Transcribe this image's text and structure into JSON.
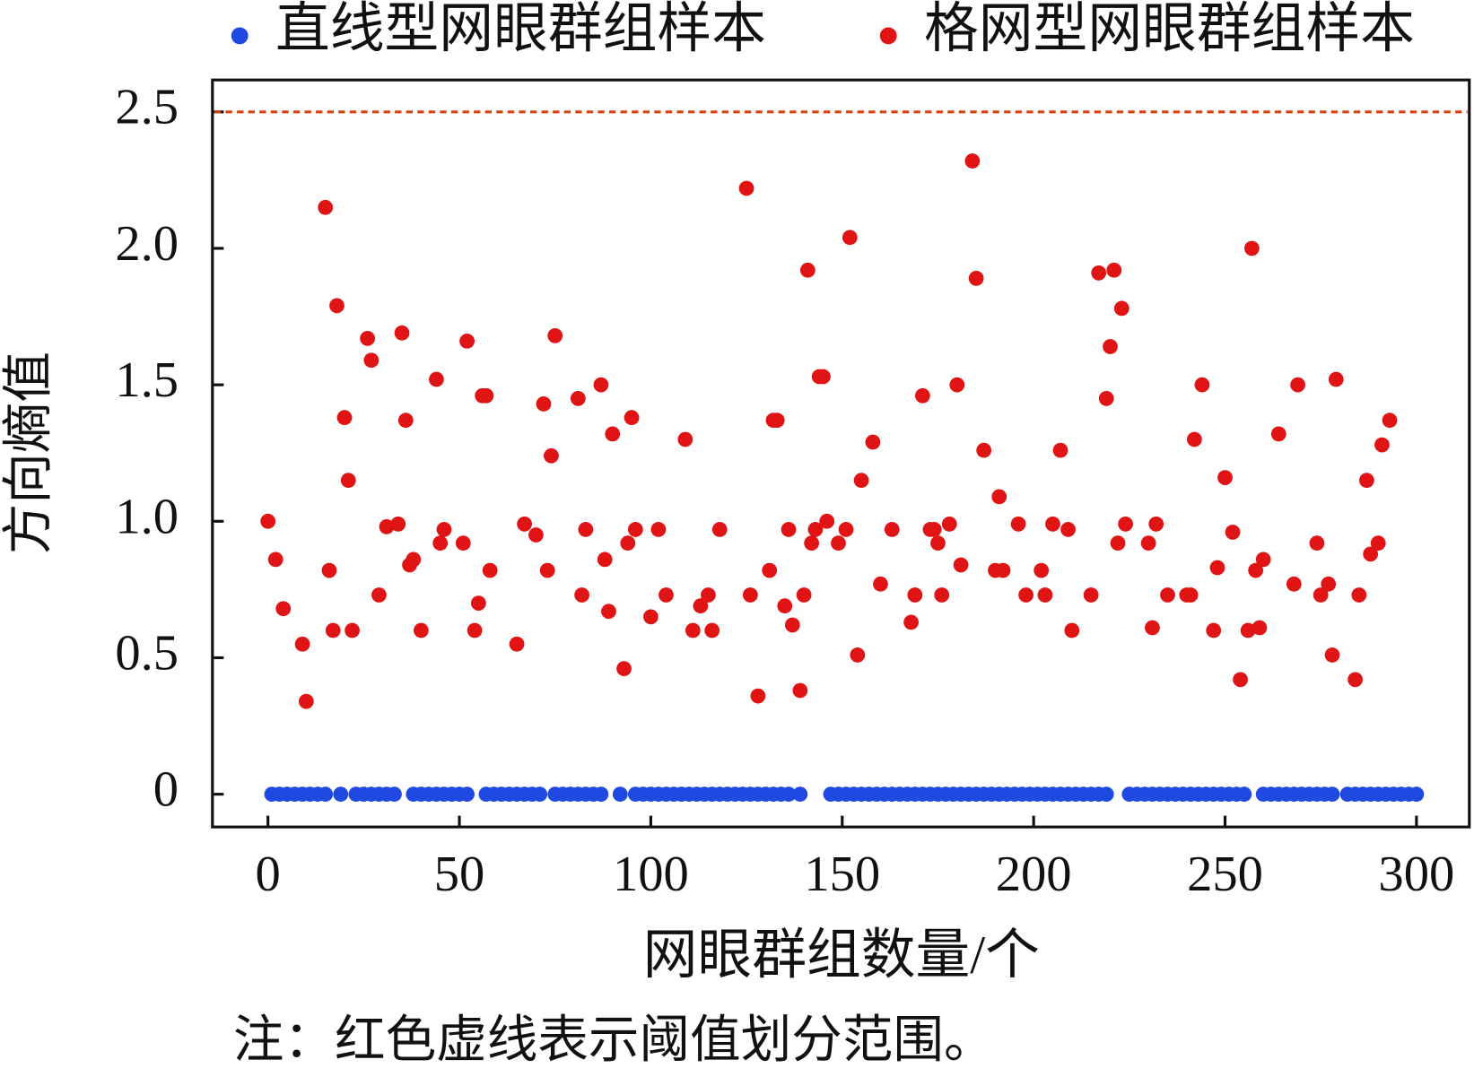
{
  "chart_data": {
    "type": "scatter",
    "xlabel": "网眼群组数量/个",
    "ylabel": "方向熵值",
    "note": "注：红色虚线表示阈值划分范围。",
    "xlim": [
      -14.5,
      313.8
    ],
    "ylim": [
      -0.12,
      2.617
    ],
    "xticks": [
      0,
      50,
      100,
      150,
      200,
      250,
      300
    ],
    "yticks": [
      0,
      0.5,
      {
        "value": 1,
        "label": "1.0"
      },
      1.5,
      {
        "value": 2,
        "label": "2.0"
      },
      2.5
    ],
    "threshold": {
      "value": 2.5,
      "color": "#d9400f"
    },
    "series": [
      {
        "name": "直线型网眼群组样本",
        "color": "#1f49e0",
        "x": [
          1,
          3,
          5,
          7,
          9,
          11,
          13,
          15,
          19,
          23,
          25,
          27,
          29,
          31,
          33,
          38,
          40,
          42,
          44,
          46,
          48,
          50,
          52,
          57,
          59,
          61,
          63,
          65,
          67,
          69,
          71,
          75,
          77,
          79,
          81,
          83,
          85,
          87,
          92,
          96,
          98,
          100,
          102,
          104,
          106,
          108,
          110,
          112,
          114,
          116,
          118,
          120,
          122,
          124,
          126,
          128,
          130,
          132,
          134,
          136,
          139,
          147,
          149,
          151,
          153,
          155,
          157,
          159,
          161,
          163,
          165,
          167,
          169,
          171,
          173,
          175,
          177,
          179,
          181,
          183,
          185,
          187,
          189,
          191,
          193,
          195,
          197,
          199,
          201,
          203,
          205,
          207,
          209,
          211,
          213,
          215,
          217,
          219,
          225,
          227,
          229,
          231,
          233,
          235,
          237,
          239,
          241,
          243,
          245,
          247,
          249,
          251,
          253,
          255,
          260,
          262,
          264,
          266,
          268,
          270,
          272,
          274,
          276,
          278,
          282,
          284,
          286,
          288,
          290,
          292,
          294,
          296,
          298,
          300
        ],
        "values": [
          0,
          0,
          0,
          0,
          0,
          0,
          0,
          0,
          0,
          0,
          0,
          0,
          0,
          0,
          0,
          0,
          0,
          0,
          0,
          0,
          0,
          0,
          0,
          0,
          0,
          0,
          0,
          0,
          0,
          0,
          0,
          0,
          0,
          0,
          0,
          0,
          0,
          0,
          0,
          0,
          0,
          0,
          0,
          0,
          0,
          0,
          0,
          0,
          0,
          0,
          0,
          0,
          0,
          0,
          0,
          0,
          0,
          0,
          0,
          0,
          0,
          0,
          0,
          0,
          0,
          0,
          0,
          0,
          0,
          0,
          0,
          0,
          0,
          0,
          0,
          0,
          0,
          0,
          0,
          0,
          0,
          0,
          0,
          0,
          0,
          0,
          0,
          0,
          0,
          0,
          0,
          0,
          0,
          0,
          0,
          0,
          0,
          0,
          0,
          0,
          0,
          0,
          0,
          0,
          0,
          0,
          0,
          0,
          0,
          0,
          0,
          0,
          0,
          0,
          0,
          0,
          0,
          0,
          0,
          0,
          0,
          0,
          0,
          0,
          0,
          0,
          0,
          0,
          0,
          0,
          0,
          0,
          0,
          0
        ]
      },
      {
        "name": "格网型网眼群组样本",
        "color": "#e01414",
        "x": [
          0,
          2,
          4,
          9,
          10,
          15,
          16,
          17,
          18,
          20,
          21,
          22,
          26,
          27,
          29,
          31,
          34,
          35,
          36,
          37,
          38,
          40,
          44,
          45,
          46,
          51,
          52,
          54,
          55,
          56,
          57,
          58,
          65,
          67,
          70,
          72,
          73,
          74,
          75,
          81,
          82,
          83,
          87,
          88,
          89,
          90,
          93,
          94,
          95,
          96,
          100,
          102,
          104,
          109,
          111,
          113,
          115,
          116,
          118,
          125,
          126,
          128,
          131,
          132,
          133,
          135,
          136,
          137,
          139,
          140,
          141,
          142,
          143,
          144,
          145,
          146,
          149,
          151,
          152,
          154,
          155,
          158,
          160,
          163,
          168,
          169,
          171,
          173,
          174,
          175,
          176,
          178,
          180,
          181,
          184,
          185,
          187,
          190,
          191,
          192,
          196,
          198,
          202,
          203,
          205,
          207,
          209,
          210,
          215,
          217,
          219,
          220,
          221,
          222,
          223,
          224,
          230,
          231,
          232,
          235,
          240,
          241,
          242,
          244,
          247,
          248,
          250,
          252,
          254,
          256,
          257,
          258,
          259,
          260,
          264,
          268,
          269,
          274,
          275,
          277,
          278,
          279,
          284,
          285,
          287,
          288,
          290,
          291,
          293
        ],
        "values": [
          1.0,
          0.86,
          0.68,
          0.55,
          0.34,
          2.15,
          0.82,
          0.6,
          1.79,
          1.38,
          1.15,
          0.6,
          1.67,
          1.59,
          0.73,
          0.98,
          0.99,
          1.69,
          1.37,
          0.84,
          0.86,
          0.6,
          1.52,
          0.92,
          0.97,
          0.92,
          1.66,
          0.6,
          0.7,
          1.46,
          1.46,
          0.82,
          0.55,
          0.99,
          0.95,
          1.43,
          0.82,
          1.24,
          1.68,
          1.45,
          0.73,
          0.97,
          1.5,
          0.86,
          0.67,
          1.32,
          0.46,
          0.92,
          1.38,
          0.97,
          0.65,
          0.97,
          0.73,
          1.3,
          0.6,
          0.69,
          0.73,
          0.6,
          0.97,
          2.22,
          0.73,
          0.36,
          0.82,
          1.37,
          1.37,
          0.69,
          0.97,
          0.62,
          0.38,
          0.73,
          1.92,
          0.92,
          0.97,
          1.53,
          1.53,
          1.0,
          0.92,
          0.97,
          2.04,
          0.51,
          1.15,
          1.29,
          0.77,
          0.97,
          0.63,
          0.73,
          1.46,
          0.97,
          0.97,
          0.92,
          0.73,
          0.99,
          1.5,
          0.84,
          2.32,
          1.89,
          1.26,
          0.82,
          1.09,
          0.82,
          0.99,
          0.73,
          0.82,
          0.73,
          0.99,
          1.26,
          0.97,
          0.6,
          0.73,
          1.91,
          1.45,
          1.64,
          1.92,
          0.92,
          1.78,
          0.99,
          0.92,
          0.61,
          0.99,
          0.73,
          0.73,
          0.73,
          1.3,
          1.5,
          0.6,
          0.83,
          1.16,
          0.96,
          0.42,
          0.6,
          2.0,
          0.82,
          0.61,
          0.86,
          1.32,
          0.77,
          1.5,
          0.92,
          0.73,
          0.77,
          0.51,
          1.52,
          0.42,
          0.73,
          1.15,
          0.88,
          0.92,
          1.28,
          1.37
        ]
      }
    ]
  }
}
